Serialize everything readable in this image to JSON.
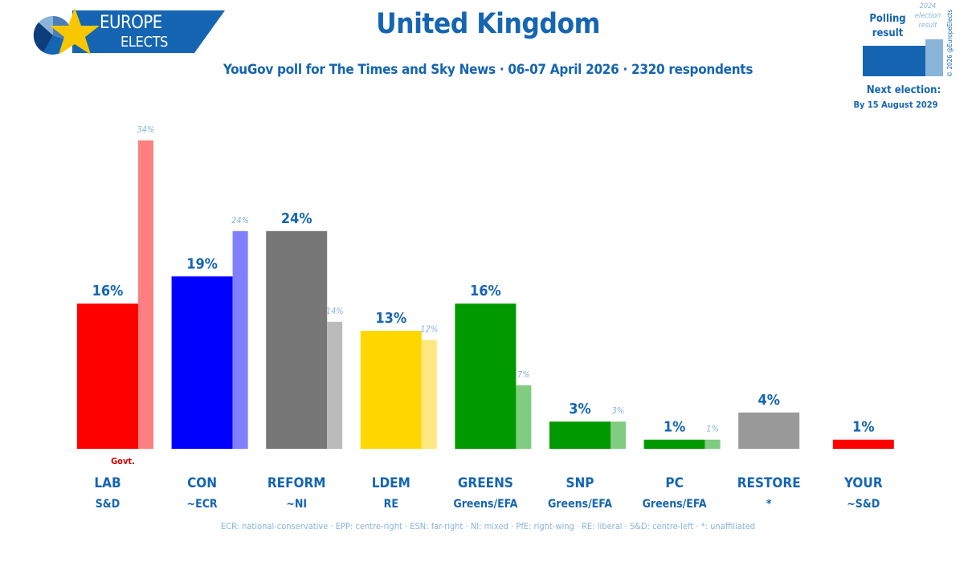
{
  "branding": {
    "line1": "EUROPE",
    "line2": "ELECTS",
    "copyright": "© 2026 @EuropeElects",
    "colors": {
      "brand_blue": "#1565b2",
      "light_blue": "#8ab4d9",
      "star_yellow": "#f7c800"
    }
  },
  "title": "United Kingdom",
  "subtitle": "YouGov poll for The Times and Sky News · 06-07 April 2026 · 2320 respondents",
  "legend": {
    "polling": "Polling result",
    "election": "2024 election result"
  },
  "next_election": {
    "title": "Next election:",
    "date": "By 15 August 2029"
  },
  "footer": "ECR: national-conservative · EPP: centre-right · ESN: far-right · NI: mixed · PfE: right-wing · RE: liberal · S&D: centre-left · *: unaffiliated",
  "chart_data": {
    "type": "bar",
    "ylim": [
      0,
      35
    ],
    "grid": false,
    "categories": [
      "LAB",
      "CON",
      "REFORM",
      "LDEM",
      "GREENS",
      "SNP",
      "PC",
      "RESTORE",
      "YOUR"
    ],
    "groups": [
      "S&D",
      "~ECR",
      "~NI",
      "RE",
      "Greens/EFA",
      "Greens/EFA",
      "Greens/EFA",
      "*",
      "~S&D"
    ],
    "series": [
      {
        "name": "Polling result",
        "values": [
          16,
          19,
          24,
          13,
          16,
          3,
          1,
          4,
          1
        ],
        "labels": [
          "16%",
          "19%",
          "24%",
          "13%",
          "16%",
          "3%",
          "1%",
          "4%",
          "1%"
        ]
      },
      {
        "name": "2024 election result",
        "values": [
          34,
          24,
          14,
          12,
          7,
          3,
          1,
          null,
          null
        ],
        "labels": [
          "34%",
          "24%",
          "14%",
          "12%",
          "7%",
          "3%",
          "1%",
          "",
          ""
        ]
      }
    ],
    "colors": [
      "#ff0000",
      "#0000ff",
      "#777777",
      "#ffd700",
      "#009900",
      "#009900",
      "#009900",
      "#999999",
      "#ff0000"
    ],
    "election_colors": [
      "#ff8080",
      "#8080ff",
      "#bbbbbb",
      "#ffe880",
      "#80cc80",
      "#80cc80",
      "#80cc80",
      null,
      null
    ],
    "annotation": "Govt.",
    "annotation_category": "LAB"
  }
}
